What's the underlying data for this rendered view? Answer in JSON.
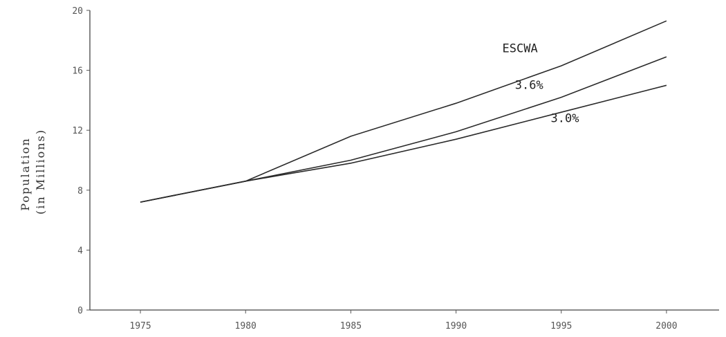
{
  "chart_data": {
    "type": "line",
    "title": "",
    "xlabel": "",
    "ylabel": "Population (in Millions)",
    "ylabel_lines": [
      "Population",
      "(in Millions)"
    ],
    "x": [
      1975,
      1980,
      1985,
      1990,
      1995,
      2000
    ],
    "xlim": [
      1972.6,
      2002.5
    ],
    "ylim": [
      0,
      20
    ],
    "x_ticks": [
      1975,
      1980,
      1985,
      1990,
      1995,
      2000
    ],
    "x_tick_labels": [
      "1975",
      "1980",
      "1985",
      "1990",
      "1995",
      "2000"
    ],
    "y_ticks": [
      0,
      4,
      8,
      12,
      16,
      20
    ],
    "y_tick_labels": [
      "0",
      "4",
      "8",
      "12",
      "16",
      "20"
    ],
    "grid": false,
    "legend": "none",
    "series": [
      {
        "name": "ESCWA",
        "values": [
          7.2,
          8.6,
          11.6,
          13.8,
          16.3,
          19.3
        ]
      },
      {
        "name": "3.6%",
        "values": [
          7.2,
          8.6,
          10.0,
          11.9,
          14.2,
          16.9
        ]
      },
      {
        "name": "3.0%",
        "values": [
          7.2,
          8.6,
          9.8,
          11.4,
          13.2,
          15.0
        ]
      }
    ],
    "line_color": "#2a2a2a"
  }
}
